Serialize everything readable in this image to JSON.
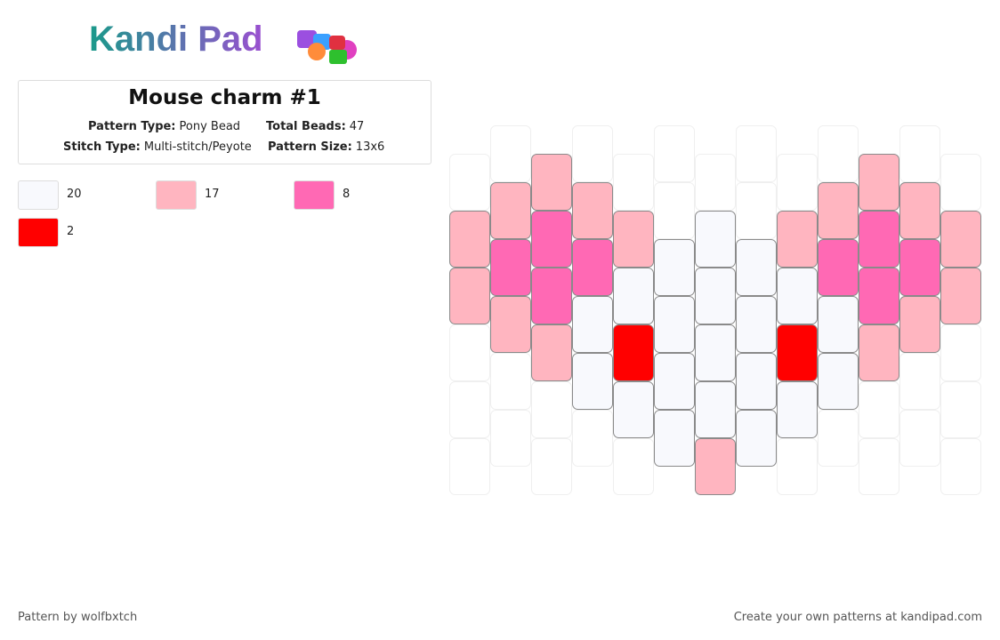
{
  "logo": "Kandi Pad",
  "title": "Mouse charm #1",
  "info": [
    {
      "label": "Pattern Type:",
      "value": "Pony Bead"
    },
    {
      "label": "Total Beads:",
      "value": "47"
    },
    {
      "label": "Stitch Type:",
      "value": "Multi-stitch/Peyote"
    },
    {
      "label": "Pattern Size:",
      "value": "13x6"
    }
  ],
  "legend": [
    {
      "color": "#f8f9fd",
      "count": 20
    },
    {
      "color": "#ffb5c0",
      "count": 17
    },
    {
      "color": "#ff69b4",
      "count": 8
    },
    {
      "color": "#ff0000",
      "count": 2
    }
  ],
  "pattern": [
    [
      null,
      1,
      1,
      null,
      null,
      null
    ],
    [
      null,
      1,
      2,
      1,
      null,
      null
    ],
    [
      1,
      2,
      2,
      1,
      null,
      null
    ],
    [
      null,
      1,
      2,
      0,
      0,
      null
    ],
    [
      null,
      1,
      0,
      3,
      0,
      null
    ],
    [
      null,
      null,
      0,
      0,
      0,
      0
    ],
    [
      null,
      0,
      0,
      0,
      0,
      1
    ],
    [
      null,
      null,
      0,
      0,
      0,
      0
    ],
    [
      null,
      1,
      0,
      3,
      0,
      null
    ],
    [
      null,
      1,
      2,
      0,
      0,
      null
    ],
    [
      1,
      2,
      2,
      1,
      null,
      null
    ],
    [
      null,
      1,
      2,
      1,
      null,
      null
    ],
    [
      null,
      1,
      1,
      null,
      null,
      null
    ]
  ],
  "footer": {
    "left": "Pattern by wolfbxtch",
    "right": "Create your own patterns at kandipad.com"
  }
}
